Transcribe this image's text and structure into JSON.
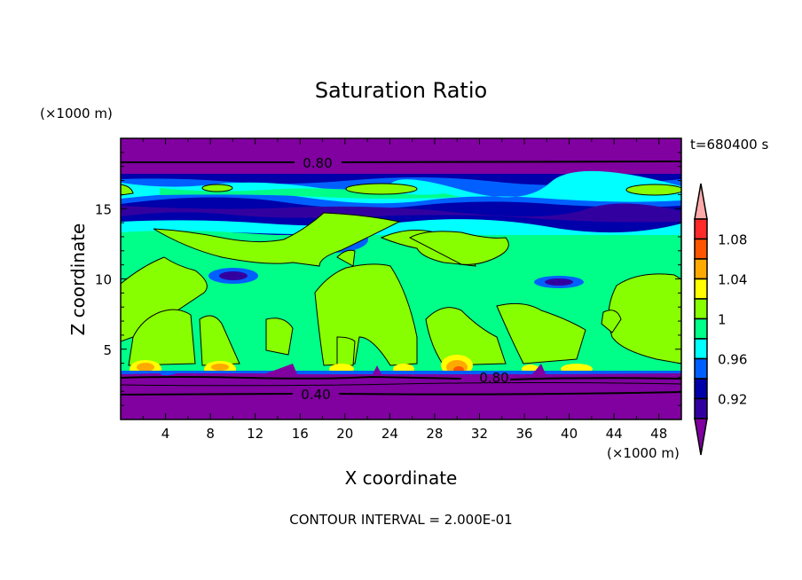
{
  "chart_data": {
    "type": "heatmap",
    "subtype": "filled-contour",
    "title": "Saturation Ratio",
    "xlabel": "X coordinate",
    "ylabel": "Z coordinate",
    "x_unit": "(×1000 m)",
    "y_unit": "(×1000 m)",
    "xlim": [
      0,
      50
    ],
    "ylim": [
      0,
      20
    ],
    "x_ticks": [
      4,
      8,
      12,
      16,
      20,
      24,
      28,
      32,
      36,
      40,
      44,
      48
    ],
    "y_ticks": [
      5,
      10,
      15
    ],
    "time_label": "t=680400 s",
    "footer": "CONTOUR INTERVAL = 2.000E-01",
    "contour_labels": [
      {
        "text": "0.80",
        "x": 16,
        "y": 18.2
      },
      {
        "text": "0.80",
        "x": 32,
        "y": 3.0
      },
      {
        "text": "0.40",
        "x": 16,
        "y": 1.8
      }
    ],
    "colorbar": {
      "levels": [
        0.92,
        0.94,
        0.96,
        0.98,
        1.0,
        1.02,
        1.04,
        1.06,
        1.08,
        1.1
      ],
      "tick_labels": [
        "1.08",
        "1.04",
        "1",
        "0.96",
        "0.92"
      ],
      "colors": [
        "#ff2a2a",
        "#ff5500",
        "#ffaa00",
        "#ffff00",
        "#88ff00",
        "#00ff88",
        "#00ffff",
        "#0060ff",
        "#0000aa",
        "#3300a0"
      ],
      "over_color": "#ffaaaa",
      "under_color": "#8000a0"
    }
  }
}
